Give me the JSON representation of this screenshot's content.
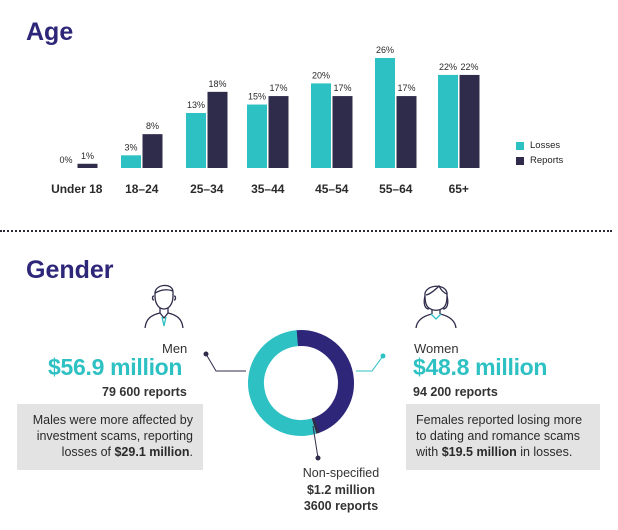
{
  "age_section": {
    "heading": "Age"
  },
  "gender_section": {
    "heading": "Gender"
  },
  "colors": {
    "losses": "#2ec1c4",
    "reports": "#2e2c4a",
    "heading": "#2e2779"
  },
  "chart_data": [
    {
      "type": "bar",
      "title": "Age",
      "categories": [
        "Under 18",
        "18–24",
        "25–34",
        "35–44",
        "45–54",
        "55–64",
        "65+"
      ],
      "series": [
        {
          "name": "Losses",
          "values": [
            0,
            3,
            13,
            15,
            20,
            26,
            22
          ],
          "labels": [
            "0%",
            "3%",
            "13%",
            "15%",
            "20%",
            "26%",
            "22%"
          ]
        },
        {
          "name": "Reports",
          "values": [
            1,
            8,
            18,
            17,
            17,
            17,
            22
          ],
          "labels": [
            "1%",
            "8%",
            "18%",
            "17%",
            "17%",
            "17%",
            "22%"
          ]
        }
      ],
      "ylim": [
        0,
        26
      ],
      "legend": "right"
    },
    {
      "type": "pie",
      "title": "Gender",
      "categories": [
        "Men",
        "Women",
        "Non-specified"
      ],
      "values": [
        56.9,
        48.8,
        1.2
      ],
      "labels": [
        "$56.9 million",
        "$48.8 million",
        "$1.2 million"
      ],
      "colors": [
        "#2ec1c4",
        "#2e2779",
        "#2e2c4a"
      ]
    }
  ],
  "men": {
    "label": "Men",
    "amount": "$56.9 million",
    "reports": "79 600 reports",
    "note_plain": "Males were more affected by investment scams, reporting losses of ",
    "note_bold": "$29.1 million",
    "note_end": "."
  },
  "women": {
    "label": "Women",
    "amount": "$48.8 million",
    "reports": "94 200 reports",
    "note_plain": "Females reported losing more to dating and romance scams with ",
    "note_bold": "$19.5 million",
    "note_end": " in losses."
  },
  "nonspecified": {
    "label": "Non-specified",
    "amount": "$1.2 million",
    "reports": "3600 reports"
  }
}
